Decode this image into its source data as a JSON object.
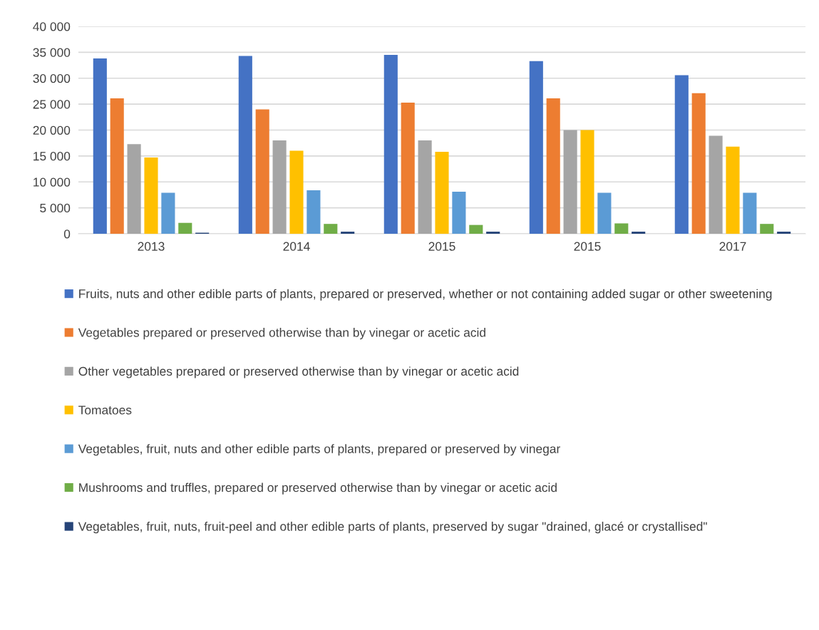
{
  "chart_data": {
    "type": "bar",
    "categories": [
      "2013",
      "2014",
      "2015",
      "2015",
      "2017"
    ],
    "ylim": [
      0,
      40000
    ],
    "yticks": [
      {
        "value": 0,
        "label": "0"
      },
      {
        "value": 5000,
        "label": "5 000"
      },
      {
        "value": 10000,
        "label": "10 000"
      },
      {
        "value": 15000,
        "label": "15 000"
      },
      {
        "value": 20000,
        "label": "20 000"
      },
      {
        "value": 25000,
        "label": "25 000"
      },
      {
        "value": 30000,
        "label": "30 000"
      },
      {
        "value": 35000,
        "label": "35 000"
      },
      {
        "value": 40000,
        "label": "40 000"
      }
    ],
    "grid": "y",
    "legend": "bottom",
    "series": [
      {
        "name": "Fruits, nuts and other edible parts of plants, prepared or preserved, whether or not containing added sugar or other sweetening",
        "color": "#4472c4",
        "values": [
          33800,
          34300,
          34500,
          33300,
          30600
        ]
      },
      {
        "name": "Vegetables prepared or preserved otherwise than by vinegar or acetic acid",
        "color": "#ed7d31",
        "values": [
          26100,
          24000,
          25300,
          26100,
          27100
        ]
      },
      {
        "name": "Other vegetables prepared or preserved otherwise than by vinegar or acetic acid",
        "color": "#a5a5a5",
        "values": [
          17300,
          18000,
          18000,
          20000,
          18900
        ]
      },
      {
        "name": "Tomatoes",
        "color": "#ffc000",
        "values": [
          14700,
          16000,
          15800,
          20000,
          16800
        ]
      },
      {
        "name": "Vegetables, fruit, nuts and other edible parts of plants, prepared or preserved by vinegar",
        "color": "#5b9bd5",
        "values": [
          7900,
          8400,
          8100,
          7900,
          7900
        ]
      },
      {
        "name": "Mushrooms and truffles, prepared or preserved otherwise than by vinegar or acetic acid",
        "color": "#70ad47",
        "values": [
          2100,
          1900,
          1700,
          2000,
          1900
        ]
      },
      {
        "name": "Vegetables, fruit, nuts, fruit-peel and other edible parts of plants, preserved by sugar \"drained, glacé or crystallised\"",
        "color": "#264478",
        "values": [
          200,
          400,
          400,
          400,
          400
        ]
      }
    ]
  }
}
